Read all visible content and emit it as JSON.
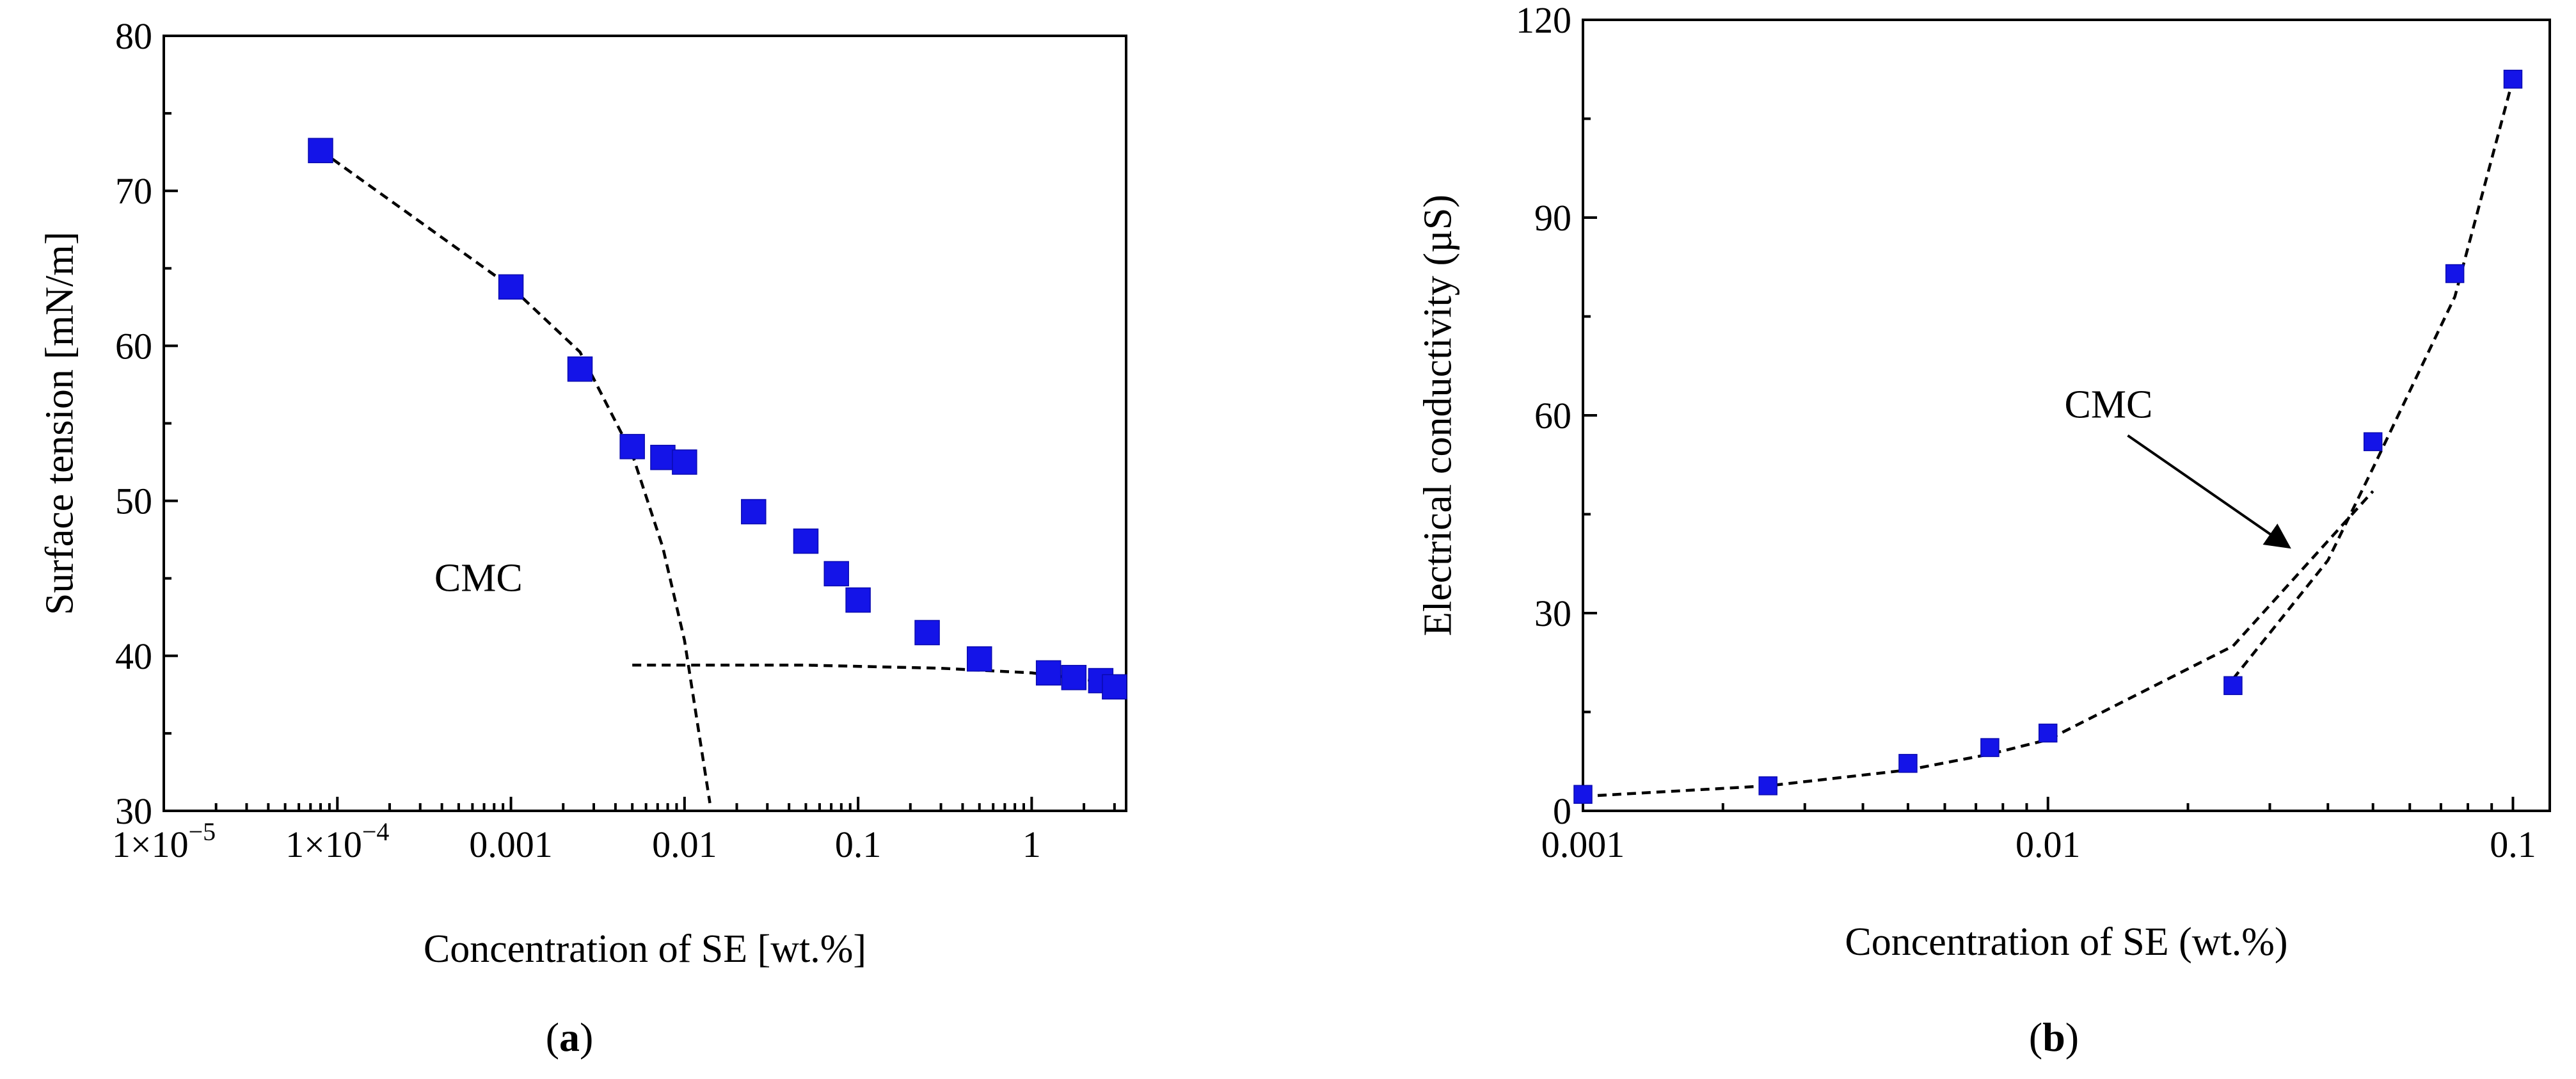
{
  "chart_data": [
    {
      "type": "scatter",
      "panel_label": "a",
      "xscale": "log",
      "xlim": [
        1e-05,
        3.5
      ],
      "ylim": [
        30,
        80
      ],
      "xlabel": "Concentration of SE [wt.%]",
      "ylabel": "Surface tension [mN/m]",
      "xticks": [
        {
          "value": 1e-05,
          "label_main": "1×10",
          "label_exp": "−5"
        },
        {
          "value": 0.0001,
          "label_main": "1×10",
          "label_exp": "−4"
        },
        {
          "value": 0.001,
          "label_main": "0.001",
          "label_exp": ""
        },
        {
          "value": 0.01,
          "label_main": "0.01",
          "label_exp": ""
        },
        {
          "value": 0.1,
          "label_main": "0.1",
          "label_exp": ""
        },
        {
          "value": 1,
          "label_main": "1",
          "label_exp": ""
        }
      ],
      "yticks": [
        30,
        40,
        50,
        60,
        70,
        80
      ],
      "series": [
        {
          "name": "SE",
          "x": [
            8e-05,
            0.001,
            0.0025,
            0.005,
            0.0075,
            0.01,
            0.025,
            0.05,
            0.075,
            0.1,
            0.25,
            0.5,
            1.25,
            1.75,
            2.5,
            3.0
          ],
          "y": [
            72.6,
            63.8,
            58.5,
            53.5,
            52.8,
            52.5,
            49.3,
            47.4,
            45.3,
            43.6,
            41.5,
            39.8,
            38.9,
            38.6,
            38.4,
            38.0
          ]
        }
      ],
      "fit_lines": [
        {
          "x": [
            8e-05,
            0.001,
            0.0025,
            0.005,
            0.0075,
            0.01,
            0.014
          ],
          "y": [
            72.6,
            63.8,
            59.6,
            53.0,
            47.0,
            41.0,
            30.5
          ]
        },
        {
          "x": [
            0.005,
            0.05,
            0.3,
            1.0,
            3.2
          ],
          "y": [
            39.4,
            39.4,
            39.2,
            38.9,
            38.2
          ]
        }
      ],
      "annotations": [
        {
          "text": "CMC",
          "x": 0.00065,
          "y": 45.1
        }
      ]
    },
    {
      "type": "scatter",
      "panel_label": "b",
      "xscale": "log",
      "xlim": [
        0.001,
        0.12
      ],
      "ylim": [
        0,
        120
      ],
      "xlabel": "Concentration of SE (wt.%)",
      "ylabel": "Electrical conductivity (µS)",
      "xticks": [
        {
          "value": 0.001,
          "label_main": "0.001",
          "label_exp": ""
        },
        {
          "value": 0.01,
          "label_main": "0.01",
          "label_exp": ""
        },
        {
          "value": 0.1,
          "label_main": "0.1",
          "label_exp": ""
        }
      ],
      "yticks": [
        0,
        30,
        60,
        90,
        120
      ],
      "series": [
        {
          "name": "SE",
          "x": [
            0.001,
            0.0025,
            0.005,
            0.0075,
            0.01,
            0.025,
            0.05,
            0.075,
            0.1
          ],
          "y": [
            2.5,
            3.8,
            7.2,
            9.6,
            11.8,
            19.0,
            56.0,
            81.5,
            111.0
          ]
        }
      ],
      "fit_lines": [
        {
          "x": [
            0.001,
            0.0025,
            0.005,
            0.0075,
            0.01,
            0.025,
            0.05
          ],
          "y": [
            2.2,
            3.8,
            6.2,
            8.6,
            10.8,
            25.0,
            48.5
          ]
        },
        {
          "x": [
            0.025,
            0.04,
            0.05,
            0.075,
            0.1
          ],
          "y": [
            20.0,
            38.0,
            52.0,
            78.0,
            111.0
          ]
        }
      ],
      "annotations": [
        {
          "text": "CMC",
          "x": 0.0135,
          "y": 61.8,
          "arrow_to": {
            "x": 0.033,
            "y": 40.0
          }
        }
      ]
    }
  ],
  "captions": {
    "a": {
      "open": "(",
      "letter": "a",
      "close": ")"
    },
    "b": {
      "open": "(",
      "letter": "b",
      "close": ")"
    }
  },
  "colors": {
    "marker": "#1414e8",
    "marker_edge": "#0b0bb0",
    "line": "#000000"
  }
}
